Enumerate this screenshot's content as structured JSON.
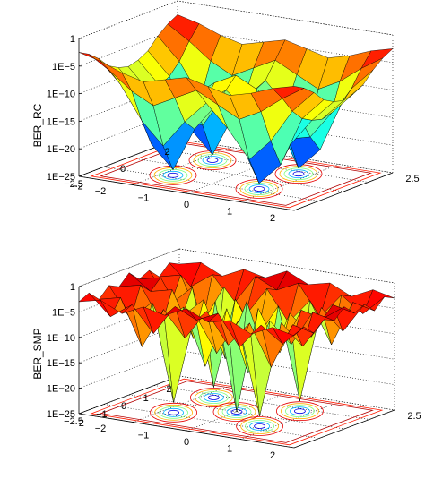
{
  "chart_data": [
    {
      "type": "surface3d",
      "ylabel": "BER_RC",
      "zticks": [
        "1",
        "1E−5",
        "1E−10",
        "1E−15",
        "1E−20",
        "1E−25"
      ],
      "xticks": [
        "−2.5",
        "−2",
        "−1",
        "0",
        "1",
        "2",
        "2.5"
      ],
      "yticks": [
        "2",
        "0",
        "−2"
      ],
      "zlim_log10": [
        -25,
        0
      ],
      "xlim": [
        -2.5,
        2.5
      ],
      "ylim": [
        -2.5,
        2.5
      ],
      "grid": true,
      "colormap": "jet",
      "contour_projection": true,
      "surface_log10": [
        [
          -2.5,
          -3.5,
          -5,
          -7,
          -8,
          -8.5,
          -8,
          -7,
          -5,
          -3.5,
          -2.5
        ],
        [
          -3.5,
          -6,
          -9,
          -11,
          -12,
          -12.5,
          -12,
          -11,
          -9,
          -6,
          -3.5
        ],
        [
          -5,
          -9,
          -15,
          -20,
          -17,
          -13,
          -17,
          -20,
          -15,
          -9,
          -5
        ],
        [
          -6,
          -11,
          -19,
          -24,
          -18,
          -12,
          -18,
          -24,
          -19,
          -11,
          -6
        ],
        [
          -5,
          -9,
          -14,
          -16,
          -12,
          -9,
          -12,
          -16,
          -14,
          -9,
          -5
        ],
        [
          -4,
          -7,
          -10,
          -11,
          -9,
          -7,
          -9,
          -11,
          -10,
          -7,
          -4
        ],
        [
          -5,
          -9,
          -14,
          -16,
          -12,
          -9,
          -12,
          -16,
          -14,
          -9,
          -5
        ],
        [
          -6,
          -11,
          -19,
          -24,
          -18,
          -12,
          -18,
          -24,
          -19,
          -11,
          -6
        ],
        [
          -5,
          -9,
          -15,
          -20,
          -17,
          -13,
          -17,
          -20,
          -15,
          -9,
          -5
        ],
        [
          -3.5,
          -6,
          -9,
          -11,
          -12,
          -12.5,
          -12,
          -11,
          -9,
          -6,
          -3.5
        ],
        [
          -2.5,
          -3.5,
          -5,
          -7,
          -8,
          -8.5,
          -8,
          -7,
          -5,
          -3.5,
          -2.5
        ]
      ]
    },
    {
      "type": "surface3d",
      "ylabel": "BER_SMP",
      "zticks": [
        "1",
        "1E−5",
        "1E−10",
        "1E−15",
        "1E−20",
        "1E−25"
      ],
      "xticks": [
        "−2.5",
        "−2",
        "−1",
        "0",
        "1",
        "2",
        "2.5"
      ],
      "yticks": [
        "2",
        "1",
        "0",
        "−1",
        "−2"
      ],
      "zlim_log10": [
        -25,
        0
      ],
      "xlim": [
        -2.5,
        2.5
      ],
      "ylim": [
        -2.5,
        2.5
      ],
      "grid": true,
      "colormap": "jet",
      "contour_projection": true,
      "surface_log10": [
        [
          -3,
          -2,
          -4,
          -2,
          -3,
          -1,
          -3,
          -2,
          -4,
          -2,
          -3
        ],
        [
          -2,
          -6,
          -3,
          -8,
          -2,
          -4,
          -2,
          -8,
          -3,
          -6,
          -2
        ],
        [
          -4,
          -3,
          -12,
          -4,
          -9,
          -3,
          -9,
          -4,
          -12,
          -3,
          -4
        ],
        [
          -2,
          -8,
          -4,
          -23,
          -5,
          -12,
          -5,
          -23,
          -4,
          -8,
          -2
        ],
        [
          -3,
          -2,
          -9,
          -5,
          -16,
          -4,
          -16,
          -5,
          -9,
          -2,
          -3
        ],
        [
          -1,
          -4,
          -3,
          -12,
          -4,
          -25,
          -4,
          -12,
          -3,
          -4,
          -1
        ],
        [
          -3,
          -2,
          -9,
          -5,
          -16,
          -4,
          -16,
          -5,
          -9,
          -2,
          -3
        ],
        [
          -2,
          -8,
          -4,
          -23,
          -5,
          -12,
          -5,
          -23,
          -4,
          -8,
          -2
        ],
        [
          -4,
          -3,
          -12,
          -4,
          -9,
          -3,
          -9,
          -4,
          -12,
          -3,
          -4
        ],
        [
          -2,
          -6,
          -3,
          -8,
          -2,
          -4,
          -2,
          -8,
          -3,
          -6,
          -2
        ],
        [
          -3,
          -2,
          -4,
          -2,
          -3,
          -1,
          -3,
          -2,
          -4,
          -2,
          -3
        ]
      ]
    }
  ]
}
